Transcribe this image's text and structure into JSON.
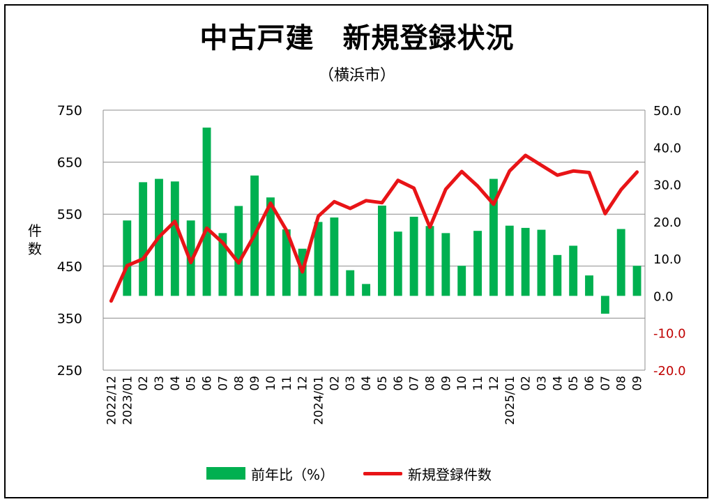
{
  "title": "中古戸建　新規登録状況",
  "subtitle": "（横浜市）",
  "colors": {
    "bar": "#00b050",
    "line": "#e81417",
    "right_axis_negative": "#c00000"
  },
  "legend": {
    "bar_label": "前年比（%）",
    "line_label": "新規登録件数"
  },
  "chart_data": {
    "type": "bar+line",
    "ylabel_left": "件数",
    "left_axis": {
      "min": 250,
      "max": 750,
      "ticks": [
        "750",
        "650",
        "550",
        "450",
        "350",
        "250"
      ]
    },
    "right_axis": {
      "min": -20,
      "max": 50,
      "ticks": [
        "50.0",
        "40.0",
        "30.0",
        "20.0",
        "10.0",
        "0.0",
        "-10.0",
        "-20.0"
      ]
    },
    "grid": "horizontal",
    "legend_position": "bottom",
    "categories": [
      "2022/12",
      "2023/01",
      "02",
      "03",
      "04",
      "05",
      "06",
      "07",
      "08",
      "09",
      "10",
      "11",
      "12",
      "2024/01",
      "02",
      "03",
      "04",
      "05",
      "06",
      "07",
      "08",
      "09",
      "10",
      "11",
      "12",
      "2025/01",
      "02",
      "03",
      "04",
      "05",
      "06",
      "07",
      "08",
      "09"
    ],
    "series": [
      {
        "name": "前年比（%）",
        "type": "bar",
        "axis": "right",
        "values": [
          null,
          20.3,
          30.6,
          31.5,
          30.8,
          20.3,
          45.3,
          16.9,
          24.2,
          32.4,
          26.5,
          17.9,
          12.7,
          19.9,
          21.1,
          6.9,
          3.2,
          24.3,
          17.3,
          21.3,
          18.8,
          16.9,
          8.1,
          17.5,
          31.5,
          18.9,
          18.3,
          17.8,
          11.0,
          13.5,
          5.5,
          -4.8,
          18.0,
          8.1
        ]
      },
      {
        "name": "新規登録件数",
        "type": "line",
        "axis": "left",
        "values": [
          383,
          451,
          464,
          506,
          536,
          457,
          523,
          495,
          456,
          510,
          571,
          519,
          439,
          546,
          574,
          561,
          576,
          572,
          615,
          600,
          525,
          598,
          632,
          604,
          569,
          633,
          663,
          644,
          625,
          633,
          630,
          551,
          597,
          631
        ]
      }
    ]
  }
}
